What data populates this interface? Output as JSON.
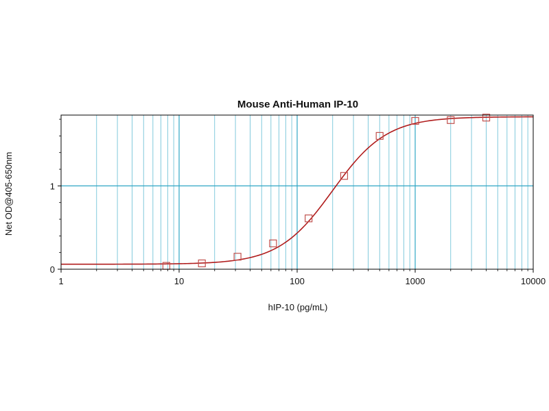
{
  "chart_data": {
    "type": "scatter",
    "title": "Mouse Anti-Human IP-10",
    "xlabel": "hIP-10 (pg/mL)",
    "ylabel": "Net OD@405-650nm",
    "x_scale": "log",
    "xlim": [
      1,
      10000
    ],
    "ylim": [
      0,
      1.85
    ],
    "x_ticks": [
      {
        "value": 1,
        "label": "1"
      },
      {
        "value": 10,
        "label": "10"
      },
      {
        "value": 100,
        "label": "100"
      },
      {
        "value": 1000,
        "label": "1000"
      },
      {
        "value": 10000,
        "label": "10000"
      }
    ],
    "y_ticks": [
      {
        "value": 0,
        "label": "0"
      },
      {
        "value": 1,
        "label": "1"
      }
    ],
    "grid": true,
    "series": [
      {
        "marker": "square",
        "x": [
          7.8,
          15.6,
          31.25,
          62.5,
          125,
          250,
          500,
          1000,
          2000,
          4000
        ],
        "y": [
          0.04,
          0.07,
          0.15,
          0.31,
          0.61,
          1.12,
          1.6,
          1.78,
          1.79,
          1.82
        ]
      }
    ],
    "fit_curve": {
      "model": "4PL",
      "bottom": 0.06,
      "top": 1.83,
      "ec50": 200,
      "hill": 1.9
    },
    "colors": {
      "grid": "#2ea6c4",
      "curve": "#b01c1c",
      "marker": "#c0504d",
      "axis": "#000000"
    }
  }
}
